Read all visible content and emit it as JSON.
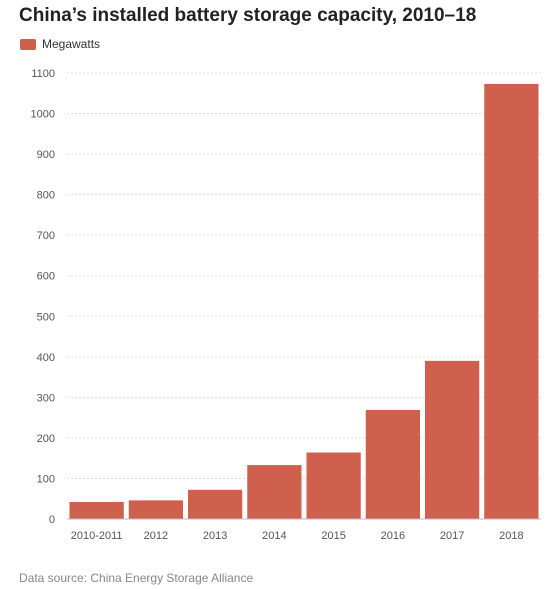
{
  "title": "China’s installed battery storage capacity, 2010–18",
  "legend": {
    "label": "Megawatts",
    "color": "#d0604e"
  },
  "source": "Data source: China Energy Storage Alliance",
  "chart_data": {
    "type": "bar",
    "title": "China’s installed battery storage capacity, 2010–18",
    "categories": [
      "2010-2011",
      "2012",
      "2013",
      "2014",
      "2015",
      "2016",
      "2017",
      "2018"
    ],
    "series": [
      {
        "name": "Megawatts",
        "values": [
          42,
          46,
          72,
          133,
          164,
          269,
          390,
          1073
        ],
        "color": "#d0604e"
      }
    ],
    "xlabel": "",
    "ylabel": "",
    "ylim": [
      0,
      1100
    ],
    "yticks": [
      0,
      100,
      200,
      300,
      400,
      500,
      600,
      700,
      800,
      900,
      1000,
      1100
    ],
    "grid": true,
    "legend_position": "top-left"
  }
}
